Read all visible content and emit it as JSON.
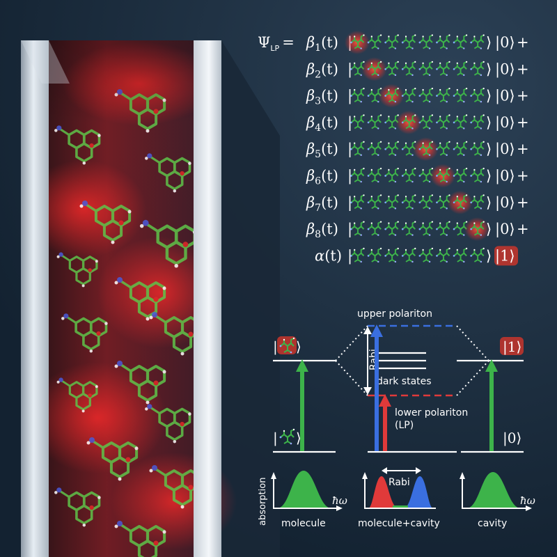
{
  "wavefunction": {
    "lhs_symbol": "Ψ",
    "lhs_subscript": "LP",
    "equals": "=",
    "rows": [
      {
        "coef": "β",
        "index": "1",
        "arg": "(t)",
        "ket": "|0⟩",
        "op": "+",
        "excited_site": 1
      },
      {
        "coef": "β",
        "index": "2",
        "arg": "(t)",
        "ket": "|0⟩",
        "op": "+",
        "excited_site": 2
      },
      {
        "coef": "β",
        "index": "3",
        "arg": "(t)",
        "ket": "|0⟩",
        "op": "+",
        "excited_site": 3
      },
      {
        "coef": "β",
        "index": "4",
        "arg": "(t)",
        "ket": "|0⟩",
        "op": "+",
        "excited_site": 4
      },
      {
        "coef": "β",
        "index": "5",
        "arg": "(t)",
        "ket": "|0⟩",
        "op": "+",
        "excited_site": 5
      },
      {
        "coef": "β",
        "index": "6",
        "arg": "(t)",
        "ket": "|0⟩",
        "op": "+",
        "excited_site": 6
      },
      {
        "coef": "β",
        "index": "7",
        "arg": "(t)",
        "ket": "|0⟩",
        "op": "+",
        "excited_site": 7
      },
      {
        "coef": "β",
        "index": "8",
        "arg": "(t)",
        "ket": "|0⟩",
        "op": "+",
        "excited_site": 8
      },
      {
        "coef": "α",
        "index": "",
        "arg": "(t)",
        "ket": "|1⟩",
        "op": "",
        "excited_site": 0
      }
    ]
  },
  "energy_diagram": {
    "upper_polariton": "upper polariton",
    "rabi": "Rabi",
    "dark_states": "dark states",
    "lower_polariton": "lower polariton",
    "lp_abbrev": "(LP)",
    "cavity_excited_ket": "|1⟩",
    "cavity_ground_ket": "|0⟩"
  },
  "spectra": {
    "ylabel": "absorption",
    "xlabel": "ħω",
    "panels": [
      {
        "label": "molecule"
      },
      {
        "label": "molecule+cavity",
        "split_label": "Rabi"
      },
      {
        "label": "cavity"
      }
    ]
  },
  "colors": {
    "molecule_green": "#3db34a",
    "upper_blue": "#3a6fe0",
    "lower_red": "#e03a3a",
    "excitation_red": "#ff3a2a",
    "background": "#1b2b3b"
  }
}
